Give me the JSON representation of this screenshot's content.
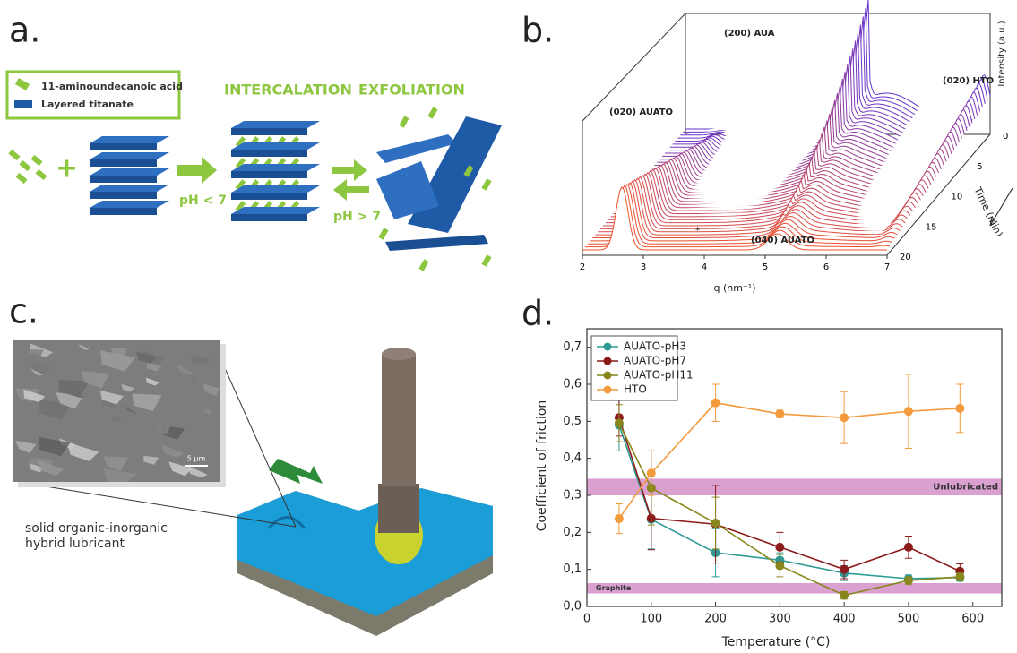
{
  "panel_a": {
    "label": "a.",
    "legend": [
      "11-aminoundecanoic acid",
      "Layered titanate"
    ],
    "intercalation": "INTERCALATION",
    "exfoliation": "EXFOLIATION",
    "acid_condition": "pH < 7",
    "base_condition": "pH > 7"
  },
  "panel_b": {
    "label": "b.",
    "x_label": "q (nm⁻¹)",
    "time_label": "Time (min)",
    "intensity_label": "Intensity (a.u.)",
    "q_ticks": [
      2,
      3,
      4,
      5,
      6,
      7
    ],
    "time_ticks": [
      0,
      5,
      10,
      15,
      20
    ],
    "peaks": [
      "(020) AUATO",
      "(200) AUA",
      "(020) HTO",
      "(040) AUATO",
      "*"
    ]
  },
  "panel_c": {
    "label": "c.",
    "scale_bar": "5 µm",
    "caption_lines": [
      "solid organic-inorganic",
      "hybrid lubricant"
    ]
  },
  "chart_data": {
    "type": "line",
    "panel_label": "d.",
    "x_label": "Temperature (°C)",
    "y_label": "Coefficient of friction",
    "x": [
      50,
      100,
      200,
      300,
      400,
      500,
      580
    ],
    "xlim": [
      0,
      645
    ],
    "xticks": [
      0,
      100,
      200,
      300,
      400,
      500,
      600
    ],
    "ylim": [
      0,
      0.75
    ],
    "yticks": [
      {
        "value": 0,
        "label": "0,0"
      },
      {
        "value": 0.1,
        "label": "0,1"
      },
      {
        "value": 0.2,
        "label": "0,2"
      },
      {
        "value": 0.3,
        "label": "0,3"
      },
      {
        "value": 0.4,
        "label": "0,4"
      },
      {
        "value": 0.5,
        "label": "0,5"
      },
      {
        "value": 0.6,
        "label": "0,6"
      },
      {
        "value": 0.7,
        "label": "0,7"
      }
    ],
    "legend": "upper left",
    "series": [
      {
        "name": "AUATO-pH3",
        "color": "#2e9a96",
        "values": [
          0.49,
          0.235,
          0.145,
          0.125,
          0.09,
          0.075,
          0.078
        ],
        "errors": [
          0.07,
          0.08,
          0.065,
          0.02,
          0.02,
          0.01,
          0.01
        ]
      },
      {
        "name": "AUATO-pH7",
        "color": "#8b1a1a",
        "values": [
          0.51,
          0.238,
          0.222,
          0.16,
          0.1,
          0.16,
          0.095
        ],
        "errors": [
          0.05,
          0.085,
          0.105,
          0.04,
          0.025,
          0.03,
          0.02
        ]
      },
      {
        "name": "AUATO-pH11",
        "color": "#88861c",
        "values": [
          0.495,
          0.32,
          0.225,
          0.11,
          0.03,
          0.07,
          0.08
        ],
        "errors": [
          0.05,
          0.1,
          0.07,
          0.03,
          0.01,
          0.01,
          0.01
        ]
      },
      {
        "name": "HTO",
        "color": "#f39a3d",
        "values": [
          0.237,
          0.36,
          0.55,
          0.52,
          0.51,
          0.527,
          0.535
        ],
        "errors": [
          0.04,
          0.06,
          0.05,
          0.01,
          0.07,
          0.1,
          0.065
        ]
      }
    ],
    "bands": [
      {
        "label": "Unlubricated",
        "range": [
          0.3,
          0.345
        ],
        "color": "#d9a0d0"
      },
      {
        "label": "Graphite",
        "range": [
          0.035,
          0.063
        ],
        "color": "#d9a0d0"
      }
    ]
  }
}
